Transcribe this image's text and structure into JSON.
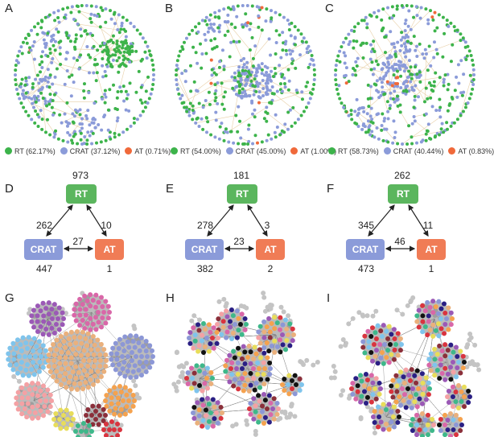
{
  "colors": {
    "RT": "#3cb34a",
    "CRAT": "#8b9bd9",
    "AT": "#f0693a",
    "edge": "#e8cfa6",
    "gray": "#c4c4c4"
  },
  "panels_top": [
    {
      "label": "A",
      "legend": [
        {
          "key": "RT",
          "text": "RT (62.17%)"
        },
        {
          "key": "CRAT",
          "text": "CRAT (37.12%)"
        },
        {
          "key": "AT",
          "text": "AT (0.71%)"
        }
      ],
      "share": {
        "RT": 62.17,
        "CRAT": 37.12,
        "AT": 0.71
      }
    },
    {
      "label": "B",
      "legend": [
        {
          "key": "RT",
          "text": "RT (54.00%)"
        },
        {
          "key": "CRAT",
          "text": "CRAT (45.00%)"
        },
        {
          "key": "AT",
          "text": "AT (1.00%)"
        }
      ],
      "share": {
        "RT": 54.0,
        "CRAT": 45.0,
        "AT": 1.0
      }
    },
    {
      "label": "C",
      "legend": [
        {
          "key": "RT",
          "text": "RT (58.73%)"
        },
        {
          "key": "CRAT",
          "text": "CRAT (40.44%)"
        },
        {
          "key": "AT",
          "text": "AT (0.83%)"
        }
      ],
      "share": {
        "RT": 58.73,
        "CRAT": 40.44,
        "AT": 0.83
      }
    }
  ],
  "panels_mid": [
    {
      "label": "D",
      "rt": "RT",
      "crat": "CRAT",
      "at": "AT",
      "rt_n": "973",
      "crat_n": "447",
      "at_n": "1",
      "rt_crat": "262",
      "rt_at": "10",
      "crat_at": "27"
    },
    {
      "label": "E",
      "rt": "RT",
      "crat": "CRAT",
      "at": "AT",
      "rt_n": "181",
      "crat_n": "382",
      "at_n": "2",
      "rt_crat": "278",
      "rt_at": "3",
      "crat_at": "23"
    },
    {
      "label": "F",
      "rt": "RT",
      "crat": "CRAT",
      "at": "AT",
      "rt_n": "262",
      "crat_n": "473",
      "at_n": "1",
      "rt_crat": "345",
      "rt_at": "11",
      "crat_at": "46"
    }
  ],
  "panels_bottom": [
    {
      "label": "G"
    },
    {
      "label": "H"
    },
    {
      "label": "I"
    }
  ],
  "module_colors": [
    "#9b59b6",
    "#d967a8",
    "#7fc4ec",
    "#eab07c",
    "#8c97d6",
    "#f4a1a4",
    "#f5a24e",
    "#8b2f3a",
    "#e8dd5a",
    "#3eb88a",
    "#d9343f",
    "#2a1f84",
    "#111111"
  ]
}
